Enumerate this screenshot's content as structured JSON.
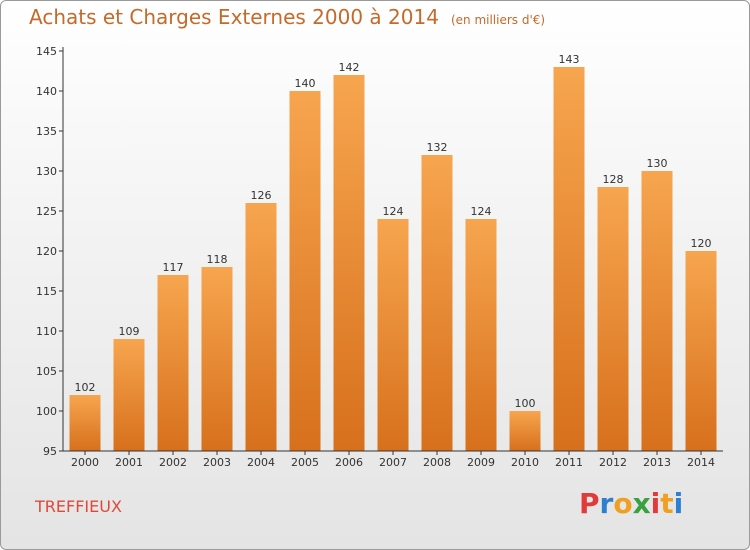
{
  "title": "Achats et Charges Externes 2000 à 2014",
  "unit": "(en milliers d'€)",
  "commune": "TREFFIEUX",
  "brand": {
    "letters": [
      "P",
      "r",
      "o",
      "x",
      "i",
      "t",
      "i"
    ],
    "colors": [
      "#e03a3a",
      "#2f7fd0",
      "#f0a020",
      "#3aa040",
      "#e03a3a",
      "#f0a020",
      "#2f7fd0"
    ]
  },
  "colors": {
    "bar_top": "#f7a54f",
    "bar_bottom": "#d7701c",
    "axis": "#333333",
    "title": "#c46a2a",
    "commune": "#e0483a"
  },
  "chart_data": {
    "type": "bar",
    "categories": [
      "2000",
      "2001",
      "2002",
      "2003",
      "2004",
      "2005",
      "2006",
      "2007",
      "2008",
      "2009",
      "2010",
      "2011",
      "2012",
      "2013",
      "2014"
    ],
    "values": [
      102,
      109,
      117,
      118,
      126,
      140,
      142,
      124,
      132,
      124,
      100,
      143,
      128,
      130,
      120
    ],
    "title": "Achats et Charges Externes 2000 à 2014",
    "xlabel": "",
    "ylabel": "",
    "ylim": [
      95,
      145
    ],
    "yticks": [
      95,
      100,
      105,
      110,
      115,
      120,
      125,
      130,
      135,
      140,
      145
    ],
    "grid": false,
    "data_labels": true
  }
}
